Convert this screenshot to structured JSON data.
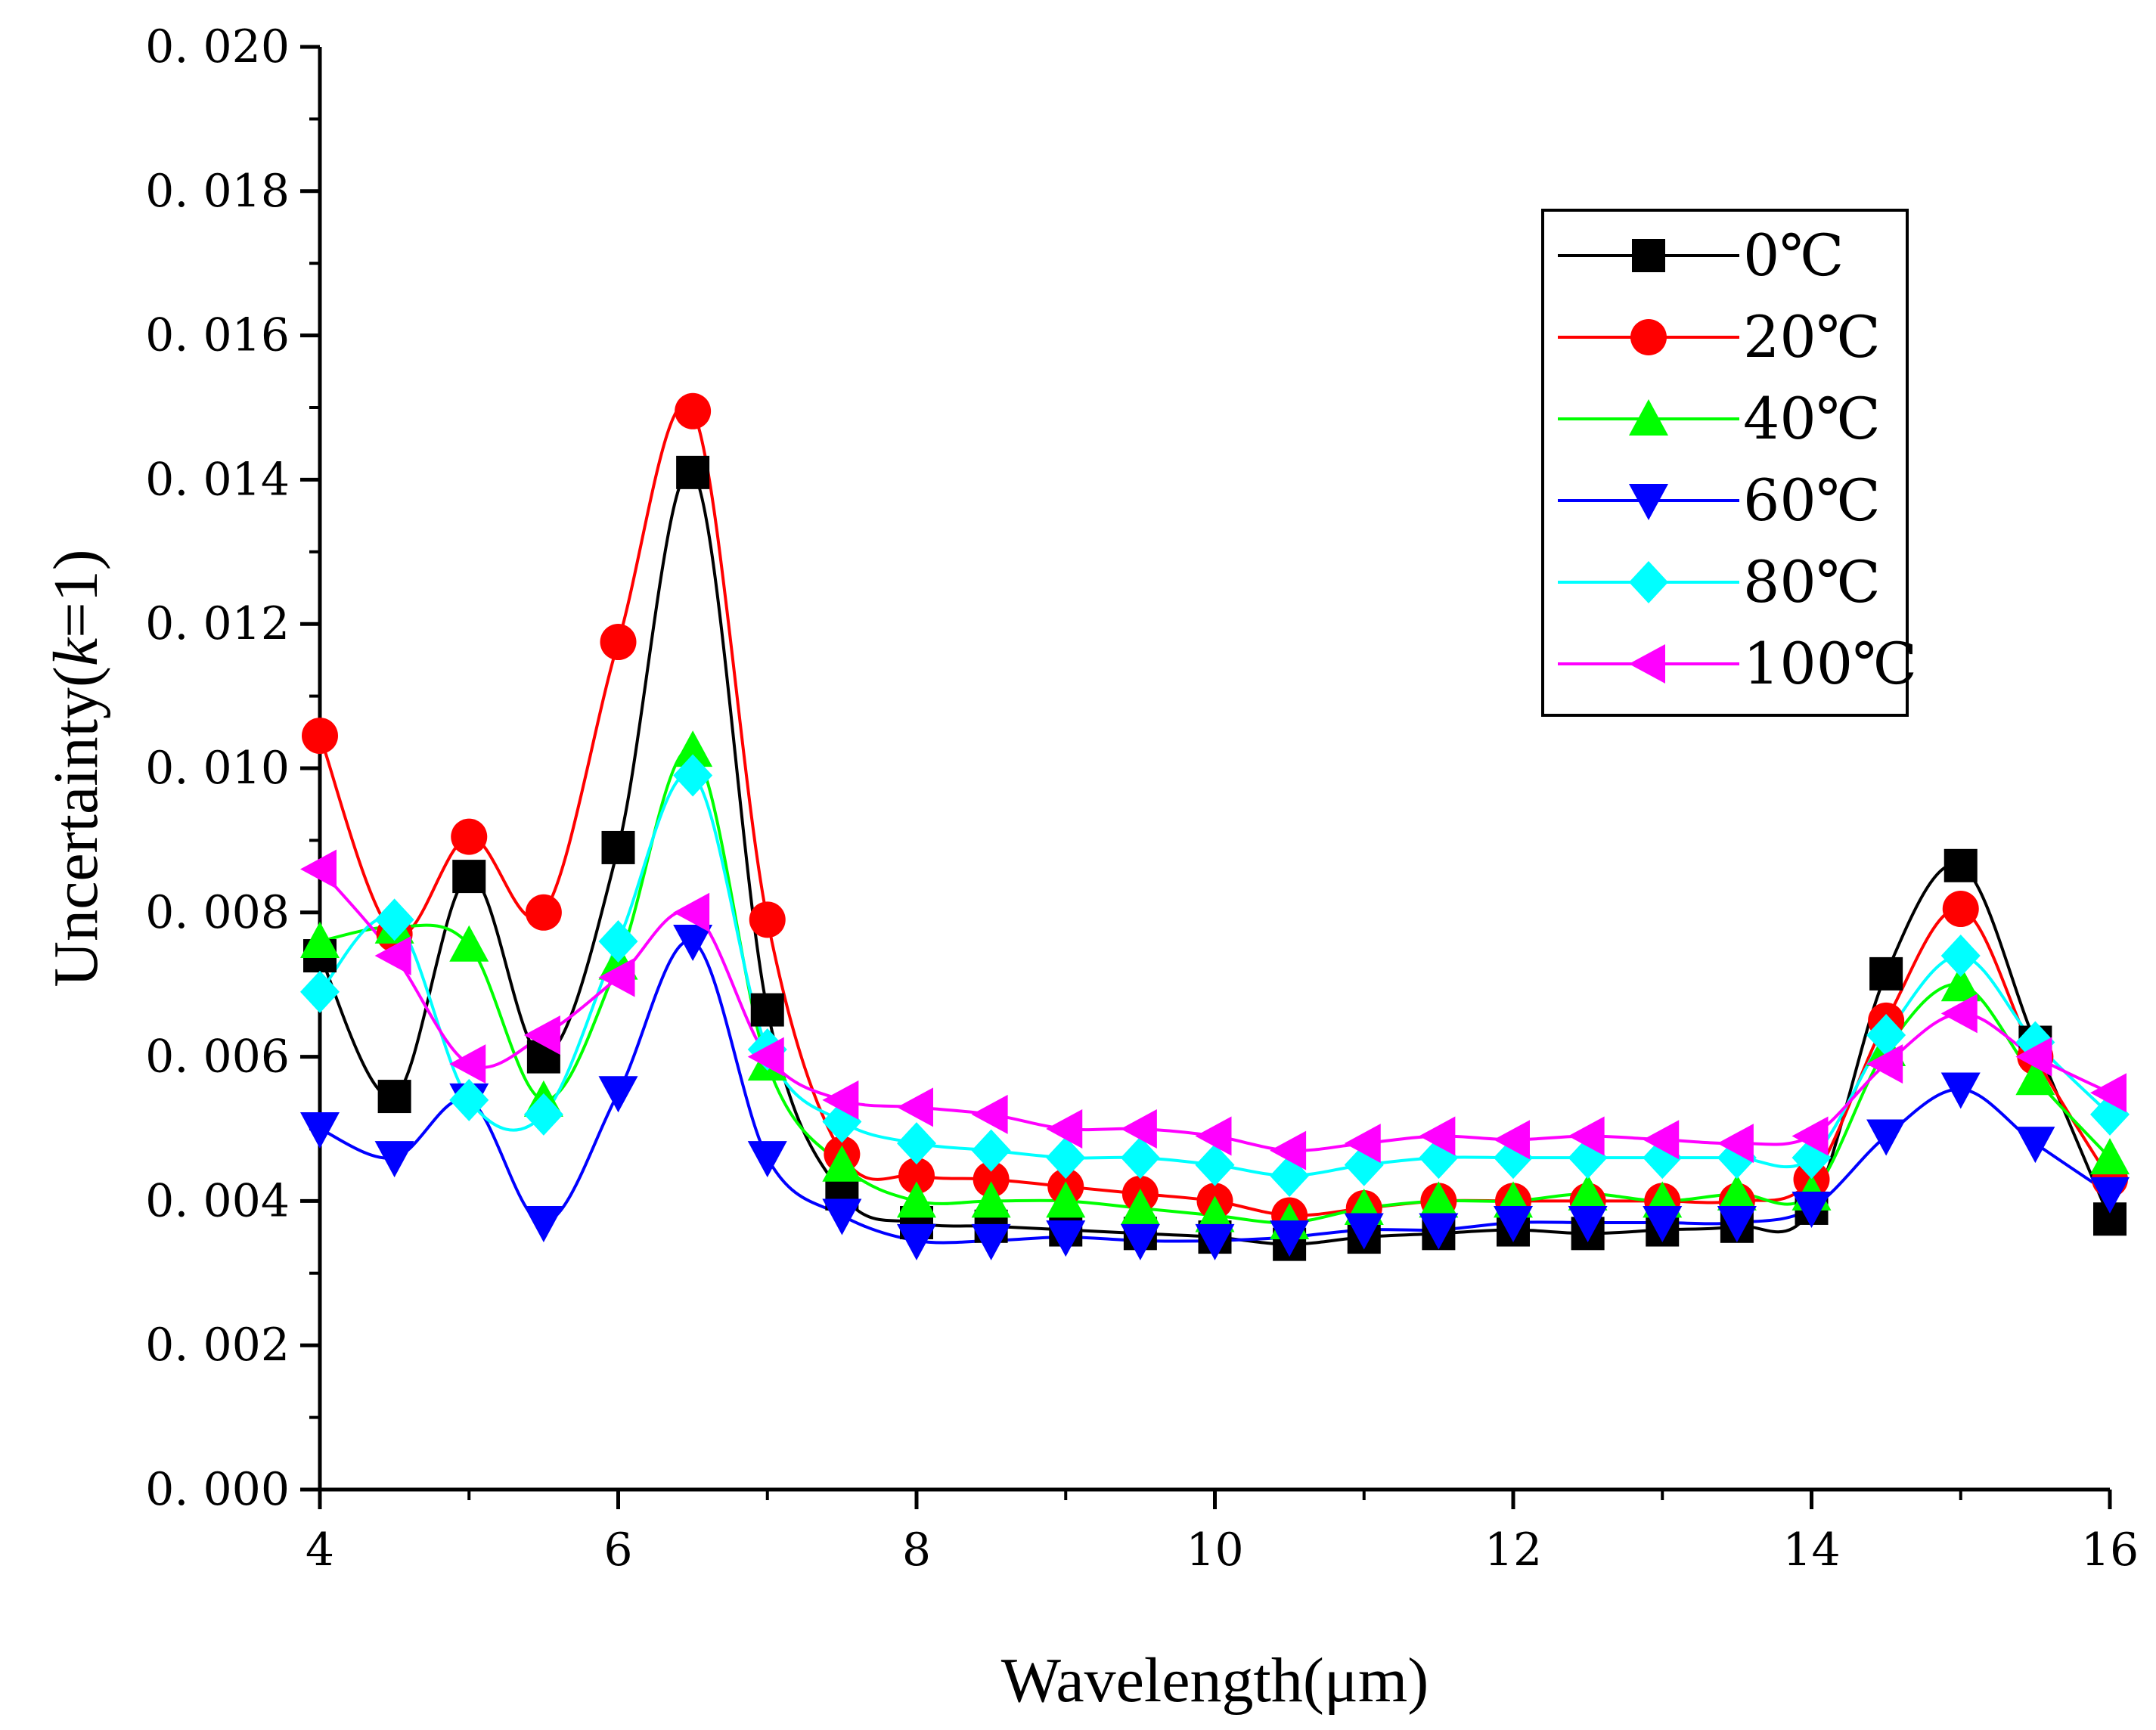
{
  "chart_data": {
    "type": "line",
    "title": "",
    "xlabel": "Wavelength(μm)",
    "ylabel": {
      "prefix": "Uncertainty(",
      "italic": "k",
      "suffix": "=1)"
    },
    "xlim": [
      4,
      16
    ],
    "ylim": [
      0,
      0.02
    ],
    "xticks": [
      4,
      6,
      8,
      10,
      12,
      14,
      16
    ],
    "xtick_labels": [
      "4",
      "6",
      "8",
      "10",
      "12",
      "14",
      "16"
    ],
    "yticks": [
      0,
      0.002,
      0.004,
      0.006,
      0.008,
      0.01,
      0.012,
      0.014,
      0.016,
      0.018,
      0.02
    ],
    "ytick_labels": [
      "0. 000",
      "0. 002",
      "0. 004",
      "0. 006",
      "0. 008",
      "0. 010",
      "0. 012",
      "0. 014",
      "0. 016",
      "0. 018",
      "0. 020"
    ],
    "legend_position": "top-right",
    "x": [
      4,
      4.5,
      5,
      5.5,
      6,
      6.5,
      7,
      7.5,
      8,
      8.5,
      9,
      9.5,
      10,
      10.5,
      11,
      11.5,
      12,
      12.5,
      13,
      13.5,
      14,
      14.5,
      15,
      15.5,
      16
    ],
    "series": [
      {
        "name": "0℃",
        "color": "#000000",
        "marker": "square",
        "values": [
          0.0074,
          0.00545,
          0.0085,
          0.006,
          0.0089,
          0.0141,
          0.00665,
          0.0041,
          0.0037,
          0.00365,
          0.0036,
          0.00355,
          0.0035,
          0.0034,
          0.0035,
          0.00355,
          0.0036,
          0.00355,
          0.0036,
          0.00365,
          0.0039,
          0.00715,
          0.00865,
          0.0062,
          0.00375
        ]
      },
      {
        "name": "20℃",
        "color": "#ff0000",
        "marker": "circle",
        "values": [
          0.01045,
          0.0077,
          0.00905,
          0.008,
          0.01175,
          0.01495,
          0.0079,
          0.00465,
          0.00435,
          0.0043,
          0.0042,
          0.0041,
          0.004,
          0.0038,
          0.0039,
          0.004,
          0.004,
          0.004,
          0.004,
          0.004,
          0.0043,
          0.0065,
          0.00805,
          0.006,
          0.0043
        ]
      },
      {
        "name": "40℃",
        "color": "#00ff00",
        "marker": "triangle-up",
        "values": [
          0.0076,
          0.0078,
          0.00755,
          0.0054,
          0.0073,
          0.01025,
          0.0059,
          0.0045,
          0.004,
          0.004,
          0.004,
          0.0039,
          0.0038,
          0.0037,
          0.0039,
          0.004,
          0.004,
          0.0041,
          0.004,
          0.0041,
          0.0041,
          0.0061,
          0.007,
          0.0057,
          0.0046
        ]
      },
      {
        "name": "60℃",
        "color": "#0000ff",
        "marker": "triangle-down",
        "values": [
          0.005,
          0.0046,
          0.0054,
          0.0037,
          0.0055,
          0.0076,
          0.0046,
          0.0038,
          0.00345,
          0.00345,
          0.0035,
          0.00345,
          0.00345,
          0.0035,
          0.0036,
          0.0036,
          0.0037,
          0.0037,
          0.0037,
          0.0037,
          0.0039,
          0.0049,
          0.00555,
          0.0048,
          0.0041
        ]
      },
      {
        "name": "80℃",
        "color": "#00ffff",
        "marker": "diamond",
        "values": [
          0.0069,
          0.0079,
          0.0054,
          0.0052,
          0.0076,
          0.0099,
          0.0061,
          0.0051,
          0.0048,
          0.0047,
          0.0046,
          0.0046,
          0.0045,
          0.00435,
          0.0045,
          0.0046,
          0.0046,
          0.0046,
          0.0046,
          0.0046,
          0.0046,
          0.0063,
          0.0074,
          0.0062,
          0.0052
        ]
      },
      {
        "name": "100℃",
        "color": "#ff00ff",
        "marker": "triangle-left",
        "values": [
          0.0086,
          0.0074,
          0.0059,
          0.0063,
          0.0071,
          0.008,
          0.006,
          0.0054,
          0.0053,
          0.0052,
          0.005,
          0.005,
          0.0049,
          0.0047,
          0.0048,
          0.0049,
          0.00485,
          0.0049,
          0.00485,
          0.0048,
          0.0049,
          0.0059,
          0.0066,
          0.006,
          0.0055
        ]
      }
    ]
  }
}
